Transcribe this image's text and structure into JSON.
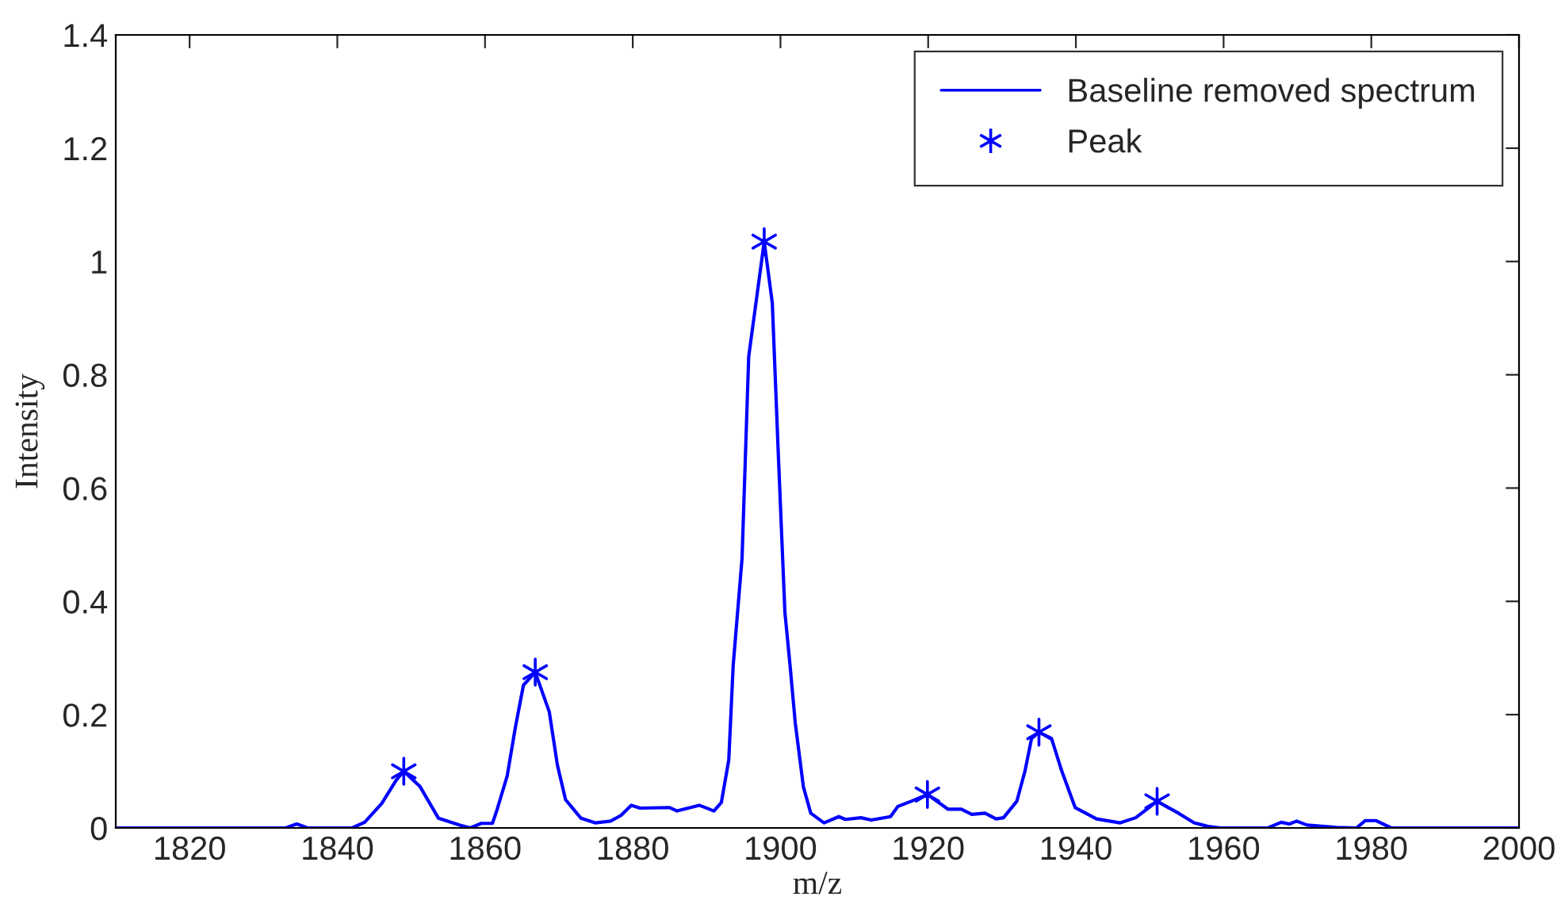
{
  "chart_data": {
    "type": "line",
    "xlabel": "m/z",
    "ylabel": "Intensity",
    "xlim": [
      1810,
      2000
    ],
    "xticks": [
      1820,
      1840,
      1860,
      1880,
      1900,
      1920,
      1940,
      1960,
      1980,
      2000
    ],
    "ylim": [
      0,
      1.4
    ],
    "yticks": [
      0,
      0.2,
      0.4,
      0.6,
      0.8,
      1,
      1.2,
      1.4
    ],
    "grid": false,
    "legend": "top right",
    "series": [
      {
        "name": "Baseline removed spectrum",
        "color": "#0000ff",
        "marker": "none",
        "line_style": "solid",
        "x": [
          1810,
          1833,
          1834.5,
          1836,
          1842,
          1843.7,
          1846,
          1848,
          1849,
          1851.2,
          1853.7,
          1856.6,
          1858,
          1859.5,
          1861,
          1861.6,
          1863,
          1864.1,
          1865.2,
          1866.8,
          1868.7,
          1869.8,
          1870.9,
          1873,
          1874.9,
          1877,
          1878.4,
          1879.8,
          1881,
          1885,
          1886,
          1889,
          1891,
          1892,
          1893,
          1893.6,
          1894.8,
          1895.7,
          1897.8,
          1898.9,
          1899.7,
          1900.6,
          1901.3,
          1902,
          1903.1,
          1904.1,
          1905.9,
          1907.9,
          1908.8,
          1910.9,
          1912.3,
          1914.9,
          1915.9,
          1917.7,
          1919.9,
          1922.7,
          1924.5,
          1925.9,
          1927.7,
          1929.2,
          1930.2,
          1932,
          1933.1,
          1934,
          1935,
          1936.7,
          1938.1,
          1939.9,
          1942.8,
          1946,
          1948.1,
          1951,
          1953.9,
          1956,
          1957.8,
          1959.6,
          1966,
          1967.8,
          1968.9,
          1969.9,
          1971.3,
          1975.3,
          1978,
          1979.2,
          1980.6,
          1982.7,
          2000
        ],
        "values": [
          0,
          0,
          0.007,
          0,
          0,
          0.01,
          0.043,
          0.085,
          0.1,
          0.073,
          0.017,
          0.005,
          0,
          0.008,
          0.008,
          0.031,
          0.092,
          0.177,
          0.252,
          0.275,
          0.205,
          0.111,
          0.05,
          0.017,
          0.009,
          0.012,
          0.022,
          0.04,
          0.035,
          0.036,
          0.03,
          0.04,
          0.03,
          0.045,
          0.12,
          0.287,
          0.476,
          0.832,
          1.035,
          0.926,
          0.663,
          0.381,
          0.287,
          0.186,
          0.073,
          0.026,
          0.009,
          0.02,
          0.015,
          0.018,
          0.014,
          0.02,
          0.038,
          0.047,
          0.059,
          0.033,
          0.033,
          0.024,
          0.026,
          0.016,
          0.018,
          0.047,
          0.1,
          0.158,
          0.169,
          0.158,
          0.1,
          0.036,
          0.016,
          0.009,
          0.018,
          0.047,
          0.026,
          0.009,
          0.003,
          0,
          0,
          0.01,
          0.007,
          0.012,
          0.005,
          0.001,
          0,
          0.013,
          0.013,
          0,
          0
        ]
      },
      {
        "name": "Peak",
        "type": "scatter",
        "color": "#0000ff",
        "marker": "cross",
        "x": [
          1849,
          1866.8,
          1897.8,
          1919.9,
          1935,
          1951
        ],
        "values": [
          0.1,
          0.275,
          1.035,
          0.059,
          0.169,
          0.047
        ]
      }
    ]
  }
}
